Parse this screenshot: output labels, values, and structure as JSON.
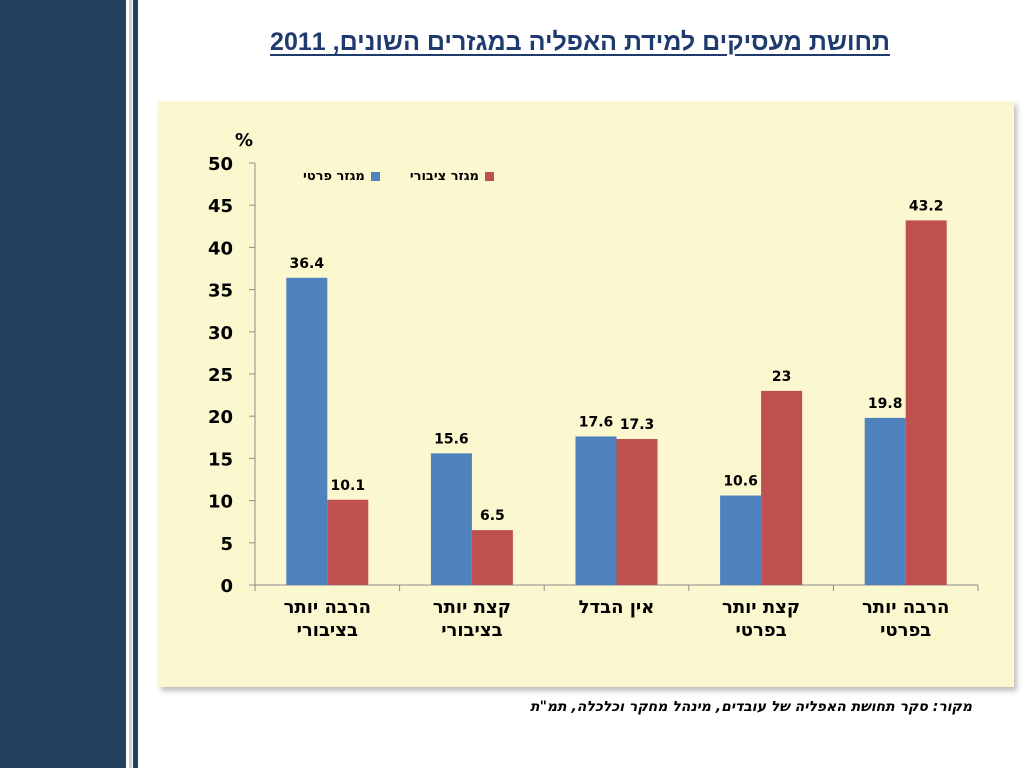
{
  "slide": {
    "title": "תחושת מעסיקים למידת האפליה במגזרים השונים, 2011",
    "source": "מקור: סקר תחושת האפליה של עובדים, מינהל מחקר וכלכלה, תמ\"ת"
  },
  "colors": {
    "private": "#4f81bd",
    "public": "#c0504d",
    "panel": "#22405f",
    "chart_bg": "#fbf8cf"
  },
  "chart_data": {
    "type": "bar",
    "title": "",
    "ylabel": "%",
    "xlabel": "",
    "ylim": [
      0,
      50
    ],
    "yticks": [
      0,
      5,
      10,
      15,
      20,
      25,
      30,
      35,
      40,
      45,
      50
    ],
    "grid": false,
    "legend_position": "top-left",
    "categories": [
      [
        "הרבה יותר",
        "בציבורי"
      ],
      [
        "קצת יותר",
        "בציבורי"
      ],
      [
        "אין הבדל"
      ],
      [
        "קצת יותר",
        "בפרטי"
      ],
      [
        "הרבה יותר",
        "בפרטי"
      ]
    ],
    "series": [
      {
        "name": "מגזר פרטי",
        "color": "#4f81bd",
        "values": [
          36.4,
          15.6,
          17.6,
          10.6,
          19.8
        ]
      },
      {
        "name": "מגזר ציבורי",
        "color": "#c0504d",
        "values": [
          10.1,
          6.5,
          17.3,
          23,
          43.2
        ]
      }
    ]
  }
}
